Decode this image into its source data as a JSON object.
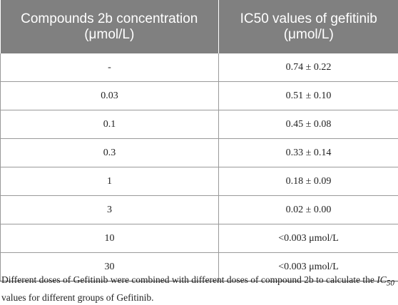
{
  "table": {
    "headers": [
      {
        "line1": "Compounds 2b concentration",
        "line2": "(μmol/L)"
      },
      {
        "line1": "IC50 values of gefitinib",
        "line2": "(μmol/L)"
      }
    ],
    "rows": [
      {
        "concentration": "-",
        "ic50": "0.74 ± 0.22"
      },
      {
        "concentration": "0.03",
        "ic50": "0.51 ± 0.10"
      },
      {
        "concentration": "0.1",
        "ic50": "0.45 ± 0.08"
      },
      {
        "concentration": "0.3",
        "ic50": "0.33 ± 0.14"
      },
      {
        "concentration": "1",
        "ic50": "0.18 ± 0.09"
      },
      {
        "concentration": "3",
        "ic50": "0.02 ± 0.00"
      },
      {
        "concentration": "10",
        "ic50": "<0.003 μmol/L"
      },
      {
        "concentration": "30",
        "ic50": "<0.003 μmol/L"
      }
    ]
  },
  "footnote": {
    "before": "Different doses of Gefitinib were combined with different doses of compound 2b to calculate the ",
    "italic": "IC",
    "italic_sub": "50",
    "after": " values for different groups of Gefitinib."
  }
}
